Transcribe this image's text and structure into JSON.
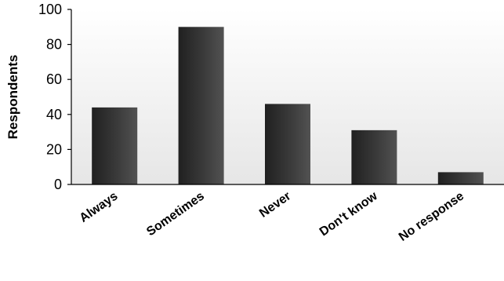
{
  "chart_data": {
    "type": "bar",
    "title": "",
    "xlabel": "",
    "ylabel": "Respondents",
    "categories": [
      "Always",
      "Sometimes",
      "Never",
      "Don't know",
      "No response"
    ],
    "values": [
      44,
      90,
      46,
      31,
      7
    ],
    "ylim": [
      0,
      100
    ],
    "yticks": [
      "0",
      "20",
      "40",
      "60",
      "80",
      "100"
    ],
    "grid": false,
    "legend": "none",
    "colors": {
      "bar_dark": "#202020",
      "bar_light": "#525252",
      "plot_background_top": "#ffffff",
      "plot_background_bottom": "#e6e6e6",
      "axis": "#000000"
    }
  }
}
